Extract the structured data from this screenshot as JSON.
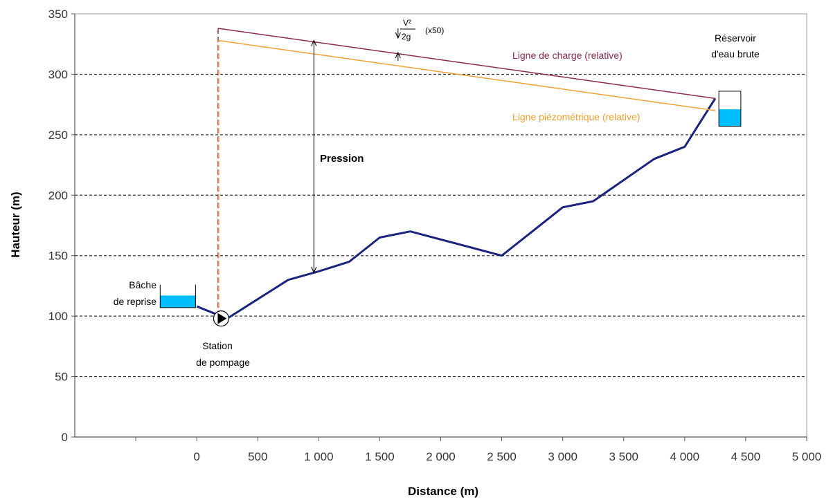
{
  "chart_data": {
    "type": "line",
    "xlabel": "Distance (m)",
    "ylabel": "Hauteur (m)",
    "xlim": [
      -1000,
      5000
    ],
    "ylim": [
      0,
      350
    ],
    "x_ticks": [
      0,
      500,
      1000,
      1500,
      2000,
      2500,
      3000,
      3500,
      4000,
      4500,
      5000
    ],
    "x_tick_labels": [
      "0",
      "500",
      "1 000",
      "1 500",
      "2 000",
      "2 500",
      "3 000",
      "3 500",
      "4 000",
      "4 500",
      "5 000"
    ],
    "y_ticks": [
      0,
      50,
      100,
      150,
      200,
      250,
      300,
      350
    ],
    "y_tick_labels": [
      "0",
      "50",
      "100",
      "150",
      "200",
      "250",
      "300",
      "350"
    ],
    "grid": "horizontal dashed",
    "series": [
      {
        "key": "terrain",
        "x": [
          0,
          250,
          750,
          1000,
          1250,
          1500,
          1750,
          2500,
          3000,
          3250,
          3750,
          4000,
          4250
        ],
        "y": [
          108,
          98,
          130,
          137,
          145,
          165,
          170,
          150,
          190,
          195,
          230,
          240,
          280
        ],
        "color": "#1a237e"
      },
      {
        "key": "charge",
        "x": [
          175,
          4250
        ],
        "y": [
          338,
          280
        ],
        "color": "#8b2a4a"
      },
      {
        "key": "piezo",
        "x": [
          175,
          4250
        ],
        "y": [
          328,
          270
        ],
        "color": "#f0a030"
      }
    ],
    "vertical_lines": [
      {
        "x": 175,
        "y_from": 100,
        "y_to": 338,
        "color": "#8b2a4a",
        "style": "dashed"
      },
      {
        "x": 180,
        "y_from": 100,
        "y_to": 328,
        "color": "#f0a030",
        "style": "dashed"
      }
    ],
    "tanks": [
      {
        "key": "bache",
        "x_from": -300,
        "x_to": -10,
        "y_bottom": 107,
        "y_water": 117,
        "y_top": 126,
        "water_color": "#00bfff"
      },
      {
        "key": "reservoir",
        "x_from": 4280,
        "x_to": 4460,
        "y_bottom": 257,
        "y_water": 271,
        "y_top": 286,
        "water_color": "#00bfff"
      }
    ],
    "pump": {
      "x": 200,
      "y": 98
    },
    "pressure_arrow": {
      "x": 960,
      "y_top": 328,
      "y_bottom": 136
    },
    "velocity_arrow": {
      "x": 1650,
      "y_top": 330,
      "y_bottom": 318
    },
    "annotations": {
      "bache": [
        "Bâche",
        "de reprise"
      ],
      "station": [
        "Station",
        "de pompage"
      ],
      "reservoir": [
        "Réservoir",
        "d'eau brute"
      ],
      "charge": "Ligne de charge (relative)",
      "piezo": "Ligne piézométrique (relative)",
      "pression": "Pression",
      "velocity_num": "V²",
      "velocity_den": "2g",
      "velocity_scale": "(x50)"
    }
  }
}
